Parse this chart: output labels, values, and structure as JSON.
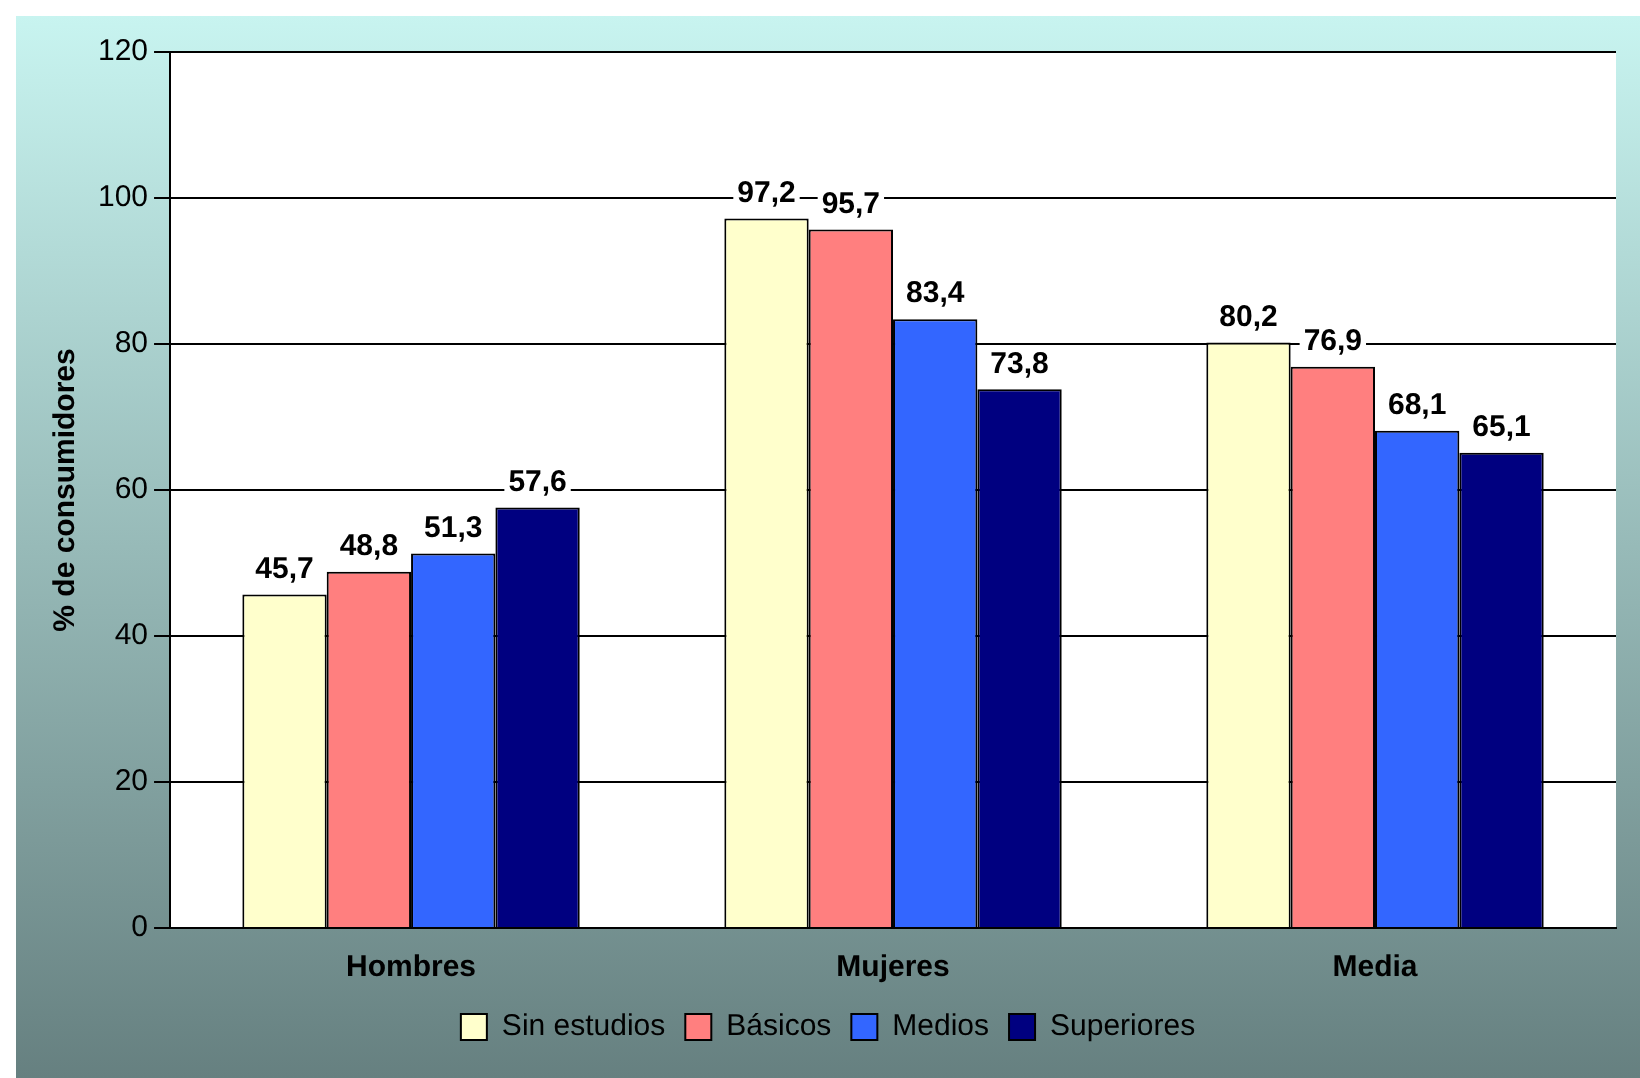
{
  "chart_data": {
    "type": "bar",
    "ylabel": "% de consumidores",
    "categories": [
      "Hombres",
      "Mujeres",
      "Media"
    ],
    "series": [
      {
        "name": "Sin estudios",
        "color": "#ffffcc",
        "values": [
          45.7,
          97.2,
          80.2
        ],
        "value_labels": [
          "45,7",
          "97,2",
          "80,2"
        ]
      },
      {
        "name": "Básicos",
        "color": "#ff7f7f",
        "values": [
          48.8,
          95.7,
          76.9
        ],
        "value_labels": [
          "48,8",
          "95,7",
          "76,9"
        ]
      },
      {
        "name": "Medios",
        "color": "#3366ff",
        "values": [
          51.3,
          83.4,
          68.1
        ],
        "value_labels": [
          "51,3",
          "83,4",
          "68,1"
        ]
      },
      {
        "name": "Superiores",
        "color": "#000080",
        "values": [
          57.6,
          73.8,
          65.1
        ],
        "value_labels": [
          "57,6",
          "73,8",
          "65,1"
        ]
      }
    ],
    "ylim": [
      0,
      120
    ],
    "yticks": [
      0,
      20,
      40,
      60,
      80,
      100,
      120
    ],
    "grid": "y",
    "legend": "bottom"
  }
}
